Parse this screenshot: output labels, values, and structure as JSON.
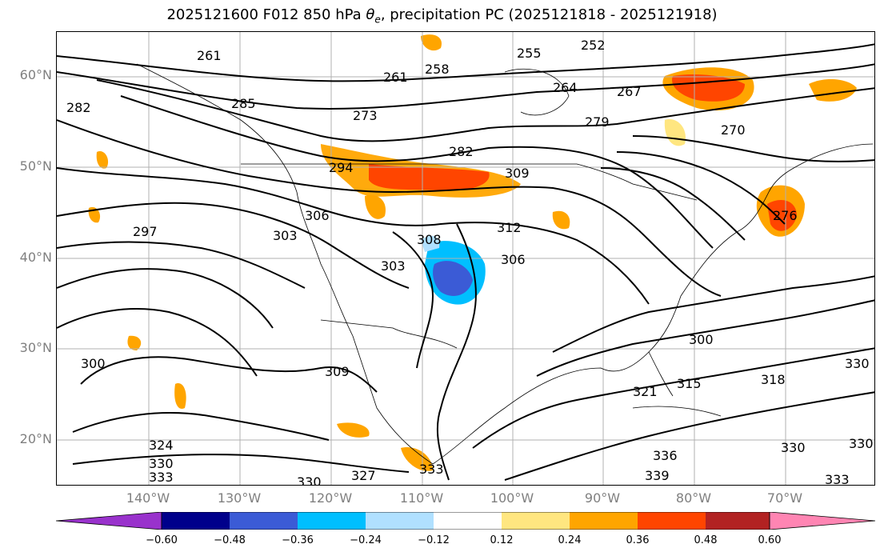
{
  "title": {
    "prefix": "2025121600 F012 850 hPa ",
    "theta": "θ",
    "sub": "e",
    "suffix": ", precipitation PC (2025121818 - 2025121918)"
  },
  "axes": {
    "lat_labels": [
      "60°N",
      "50°N",
      "40°N",
      "30°N",
      "20°N"
    ],
    "lon_labels": [
      "140°W",
      "130°W",
      "120°W",
      "110°W",
      "100°W",
      "90°W",
      "80°W",
      "70°W"
    ]
  },
  "contour_labels": [
    "261",
    "258",
    "255",
    "252",
    "261",
    "264",
    "267",
    "282",
    "285",
    "273",
    "270",
    "294",
    "282",
    "279",
    "276",
    "309",
    "306",
    "303",
    "297",
    "312",
    "308",
    "303",
    "306",
    "300",
    "309",
    "318",
    "330",
    "300",
    "321",
    "315",
    "324",
    "330",
    "333",
    "327",
    "333",
    "330",
    "336",
    "339",
    "333",
    "330",
    "330"
  ],
  "colorbar": {
    "ticks": [
      "−0.60",
      "−0.48",
      "−0.36",
      "−0.24",
      "−0.12",
      "0.12",
      "0.24",
      "0.36",
      "0.48",
      "0.60"
    ],
    "colors": [
      "#9932cc",
      "#00008b",
      "#3b5bd6",
      "#00bfff",
      "#b0e0ff",
      "#ffffff",
      "#ffe680",
      "#ffa500",
      "#ff4500",
      "#b22222",
      "#ff85b3"
    ]
  }
}
